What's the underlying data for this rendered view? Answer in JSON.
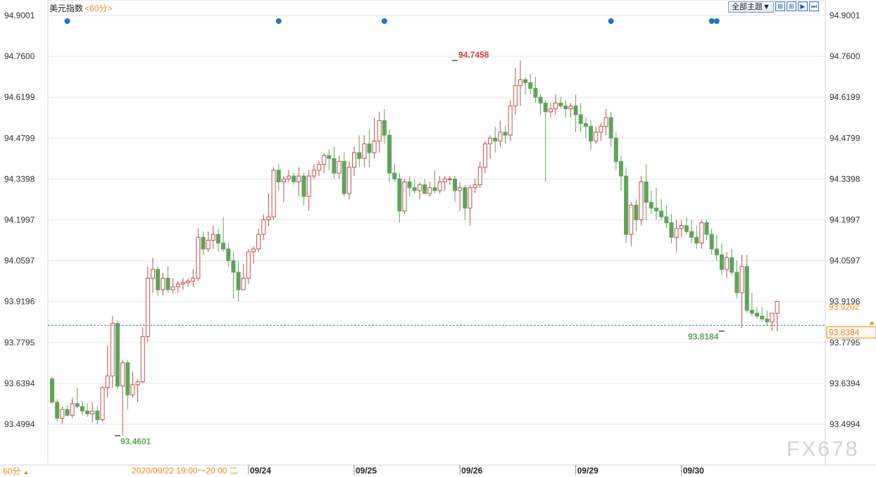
{
  "header": {
    "title": "美元指数",
    "period": "<60分>"
  },
  "toolbar": {
    "theme_label": "全部主题▼",
    "icons": [
      "grid-icon",
      "grid-icon",
      "play-icon",
      "step-forward-icon"
    ]
  },
  "footer": {
    "period_selector": "60分",
    "period_arrow": "▲",
    "crosshair_time": "2020/09/22 19:00～20:00 二"
  },
  "watermark": "FX678",
  "colors": {
    "up": "#c0504d",
    "down": "#5fa35a",
    "grid": "#e3e6ea",
    "current_price_line": "#3a87b7",
    "orange": "#f08a24",
    "event_dot": "#1f77c4"
  },
  "chart_data": {
    "type": "candlestick",
    "title": "美元指数",
    "period": "60分",
    "ylim": [
      93.4,
      94.9001
    ],
    "y_ticks": [
      "94.9001",
      "94.7600",
      "94.6199",
      "94.4799",
      "94.3398",
      "94.1997",
      "94.0597",
      "93.9196",
      "93.7795",
      "93.6394",
      "93.4994"
    ],
    "x_ticks": [
      {
        "index": 39,
        "label": "09/24"
      },
      {
        "index": 60,
        "label": "09/25"
      },
      {
        "index": 81,
        "label": "09/26"
      },
      {
        "index": 104,
        "label": "09/29"
      },
      {
        "index": 125,
        "label": "09/30"
      }
    ],
    "event_dot_indices": [
      3,
      45,
      66,
      111,
      131,
      132
    ],
    "annotations": [
      {
        "label": "94.7458",
        "value": 94.7458,
        "index": 80,
        "kind": "high"
      },
      {
        "label": "93.4601",
        "value": 93.4601,
        "index": 13,
        "kind": "low"
      },
      {
        "label": "93.8184",
        "value": 93.8184,
        "index": 133,
        "kind": "low"
      }
    ],
    "price_labels": {
      "last": "93.9202",
      "current": "93.8384"
    },
    "current_price": 93.8384,
    "ohlc": [
      [
        93.655,
        93.66,
        93.57,
        93.575
      ],
      [
        93.575,
        93.585,
        93.51,
        93.52
      ],
      [
        93.52,
        93.56,
        93.5,
        93.55
      ],
      [
        93.55,
        93.565,
        93.525,
        93.53
      ],
      [
        93.53,
        93.59,
        93.52,
        93.57
      ],
      [
        93.57,
        93.625,
        93.555,
        93.56
      ],
      [
        93.56,
        93.58,
        93.53,
        93.545
      ],
      [
        93.545,
        93.57,
        93.525,
        93.535
      ],
      [
        93.535,
        93.575,
        93.505,
        93.545
      ],
      [
        93.545,
        93.56,
        93.5,
        93.515
      ],
      [
        93.515,
        93.63,
        93.51,
        93.625
      ],
      [
        93.625,
        93.77,
        93.59,
        93.665
      ],
      [
        93.665,
        93.87,
        93.625,
        93.845
      ],
      [
        93.845,
        93.855,
        93.62,
        93.63
      ],
      [
        93.63,
        93.72,
        93.46,
        93.71
      ],
      [
        93.71,
        93.72,
        93.55,
        93.6
      ],
      [
        93.6,
        93.68,
        93.59,
        93.635
      ],
      [
        93.635,
        93.655,
        93.575,
        93.645
      ],
      [
        93.645,
        93.83,
        93.64,
        93.8
      ],
      [
        93.8,
        94.04,
        93.78,
        94.0
      ],
      [
        94.0,
        94.07,
        93.95,
        94.03
      ],
      [
        94.03,
        94.04,
        93.94,
        93.96
      ],
      [
        93.96,
        94.02,
        93.94,
        94.0
      ],
      [
        94.0,
        94.04,
        93.95,
        93.96
      ],
      [
        93.96,
        94.0,
        93.95,
        93.97
      ],
      [
        93.97,
        93.99,
        93.95,
        93.98
      ],
      [
        93.98,
        94.0,
        93.96,
        93.985
      ],
      [
        93.985,
        94.0,
        93.97,
        93.99
      ],
      [
        93.99,
        94.03,
        93.97,
        94.0
      ],
      [
        94.0,
        94.17,
        93.99,
        94.14
      ],
      [
        94.14,
        94.16,
        94.08,
        94.1
      ],
      [
        94.1,
        94.16,
        94.09,
        94.13
      ],
      [
        94.13,
        94.18,
        94.1,
        94.15
      ],
      [
        94.15,
        94.17,
        94.09,
        94.12
      ],
      [
        94.12,
        94.21,
        94.09,
        94.1
      ],
      [
        94.1,
        94.12,
        94.04,
        94.06
      ],
      [
        94.06,
        94.09,
        93.93,
        94.02
      ],
      [
        94.02,
        94.06,
        93.92,
        93.96
      ],
      [
        93.96,
        94.05,
        93.96,
        94.0
      ],
      [
        94.0,
        94.1,
        93.98,
        94.09
      ],
      [
        94.09,
        94.11,
        94.05,
        94.1
      ],
      [
        94.1,
        94.17,
        94.09,
        94.15
      ],
      [
        94.15,
        94.22,
        94.13,
        94.2
      ],
      [
        94.2,
        94.29,
        94.18,
        94.21
      ],
      [
        94.21,
        94.38,
        94.2,
        94.37
      ],
      [
        94.37,
        94.39,
        94.3,
        94.33
      ],
      [
        94.33,
        94.35,
        94.26,
        94.34
      ],
      [
        94.34,
        94.37,
        94.33,
        94.35
      ],
      [
        94.35,
        94.36,
        94.32,
        94.33
      ],
      [
        94.33,
        94.38,
        94.28,
        94.35
      ],
      [
        94.35,
        94.36,
        94.25,
        94.28
      ],
      [
        94.28,
        94.37,
        94.23,
        94.35
      ],
      [
        94.35,
        94.39,
        94.34,
        94.37
      ],
      [
        94.37,
        94.4,
        94.35,
        94.39
      ],
      [
        94.39,
        94.43,
        94.36,
        94.42
      ],
      [
        94.42,
        94.44,
        94.37,
        94.41
      ],
      [
        94.41,
        94.45,
        94.34,
        94.36
      ],
      [
        94.36,
        94.42,
        94.34,
        94.4
      ],
      [
        94.4,
        94.43,
        94.28,
        94.29
      ],
      [
        94.29,
        94.4,
        94.27,
        94.38
      ],
      [
        94.38,
        94.45,
        94.35,
        94.43
      ],
      [
        94.43,
        94.49,
        94.38,
        94.41
      ],
      [
        94.41,
        94.49,
        94.38,
        94.46
      ],
      [
        94.46,
        94.51,
        94.38,
        94.43
      ],
      [
        94.43,
        94.55,
        94.41,
        94.47
      ],
      [
        94.47,
        94.57,
        94.43,
        94.54
      ],
      [
        94.54,
        94.58,
        94.46,
        94.49
      ],
      [
        94.49,
        94.51,
        94.33,
        94.36
      ],
      [
        94.36,
        94.39,
        94.33,
        94.34
      ],
      [
        94.34,
        94.36,
        94.19,
        94.23
      ],
      [
        94.23,
        94.34,
        94.22,
        94.33
      ],
      [
        94.33,
        94.35,
        94.28,
        94.31
      ],
      [
        94.31,
        94.34,
        94.29,
        94.3
      ],
      [
        94.3,
        94.33,
        94.27,
        94.32
      ],
      [
        94.32,
        94.34,
        94.29,
        94.29
      ],
      [
        94.29,
        94.33,
        94.28,
        94.31
      ],
      [
        94.31,
        94.37,
        94.29,
        94.3
      ],
      [
        94.3,
        94.35,
        94.29,
        94.33
      ],
      [
        94.33,
        94.35,
        94.3,
        94.34
      ],
      [
        94.34,
        94.35,
        94.32,
        94.34
      ],
      [
        94.34,
        94.35,
        94.26,
        94.3
      ],
      [
        94.3,
        94.33,
        94.23,
        94.31
      ],
      [
        94.31,
        94.32,
        94.2,
        94.24
      ],
      [
        94.24,
        94.32,
        94.18,
        94.31
      ],
      [
        94.31,
        94.34,
        94.29,
        94.32
      ],
      [
        94.32,
        94.4,
        94.31,
        94.38
      ],
      [
        94.38,
        94.47,
        94.36,
        94.46
      ],
      [
        94.46,
        94.49,
        94.41,
        94.48
      ],
      [
        94.48,
        94.52,
        94.43,
        94.47
      ],
      [
        94.47,
        94.54,
        94.45,
        94.5
      ],
      [
        94.5,
        94.52,
        94.46,
        94.49
      ],
      [
        94.49,
        94.61,
        94.47,
        94.59
      ],
      [
        94.59,
        94.72,
        94.56,
        94.66
      ],
      [
        94.66,
        94.7458,
        94.59,
        94.68
      ],
      [
        94.68,
        94.69,
        94.63,
        94.67
      ],
      [
        94.67,
        94.7,
        94.63,
        94.65
      ],
      [
        94.65,
        94.69,
        94.6,
        94.62
      ],
      [
        94.62,
        94.63,
        94.56,
        94.6
      ],
      [
        94.6,
        94.61,
        94.33,
        94.57
      ],
      [
        94.57,
        94.6,
        94.55,
        94.58
      ],
      [
        94.58,
        94.63,
        94.56,
        94.6
      ],
      [
        94.6,
        94.62,
        94.58,
        94.59
      ],
      [
        94.59,
        94.61,
        94.55,
        94.58
      ],
      [
        94.58,
        94.6,
        94.55,
        94.59
      ],
      [
        94.59,
        94.63,
        94.5,
        94.56
      ],
      [
        94.56,
        94.6,
        94.5,
        94.53
      ],
      [
        94.53,
        94.55,
        94.48,
        94.52
      ],
      [
        94.52,
        94.54,
        94.44,
        94.47
      ],
      [
        94.47,
        94.52,
        94.46,
        94.5
      ],
      [
        94.5,
        94.53,
        94.47,
        94.52
      ],
      [
        94.52,
        94.58,
        94.49,
        94.55
      ],
      [
        94.55,
        94.57,
        94.45,
        94.48
      ],
      [
        94.48,
        94.5,
        94.37,
        94.4
      ],
      [
        94.4,
        94.42,
        94.3,
        94.35
      ],
      [
        94.35,
        94.38,
        94.12,
        94.15
      ],
      [
        94.15,
        94.26,
        94.11,
        94.25
      ],
      [
        94.25,
        94.27,
        94.16,
        94.2
      ],
      [
        94.2,
        94.35,
        94.18,
        94.33
      ],
      [
        94.33,
        94.39,
        94.2,
        94.26
      ],
      [
        94.26,
        94.3,
        94.22,
        94.24
      ],
      [
        94.24,
        94.31,
        94.2,
        94.23
      ],
      [
        94.23,
        94.27,
        94.2,
        94.21
      ],
      [
        94.21,
        94.25,
        94.17,
        94.19
      ],
      [
        94.19,
        94.22,
        94.12,
        94.14
      ],
      [
        94.14,
        94.2,
        94.09,
        94.17
      ],
      [
        94.17,
        94.2,
        94.14,
        94.18
      ],
      [
        94.18,
        94.21,
        94.15,
        94.16
      ],
      [
        94.16,
        94.2,
        94.12,
        94.14
      ],
      [
        94.14,
        94.18,
        94.1,
        94.12
      ],
      [
        94.12,
        94.2,
        94.1,
        94.19
      ],
      [
        94.19,
        94.2,
        94.13,
        94.15
      ],
      [
        94.15,
        94.17,
        94.08,
        94.1
      ],
      [
        94.1,
        94.15,
        94.06,
        94.08
      ],
      [
        94.08,
        94.12,
        94.01,
        94.03
      ],
      [
        94.03,
        94.09,
        94.0,
        94.07
      ],
      [
        94.07,
        94.1,
        94.01,
        94.02
      ],
      [
        94.02,
        94.06,
        93.93,
        93.95
      ],
      [
        93.95,
        94.08,
        93.83,
        94.04
      ],
      [
        94.04,
        94.08,
        93.88,
        93.89
      ],
      [
        93.89,
        93.95,
        93.87,
        93.88
      ],
      [
        93.88,
        93.9,
        93.86,
        93.87
      ],
      [
        93.87,
        93.9,
        93.85,
        93.86
      ],
      [
        93.86,
        93.89,
        93.84,
        93.85
      ],
      [
        93.85,
        93.87,
        93.82,
        93.88
      ],
      [
        93.88,
        93.92,
        93.8184,
        93.9202
      ]
    ]
  }
}
